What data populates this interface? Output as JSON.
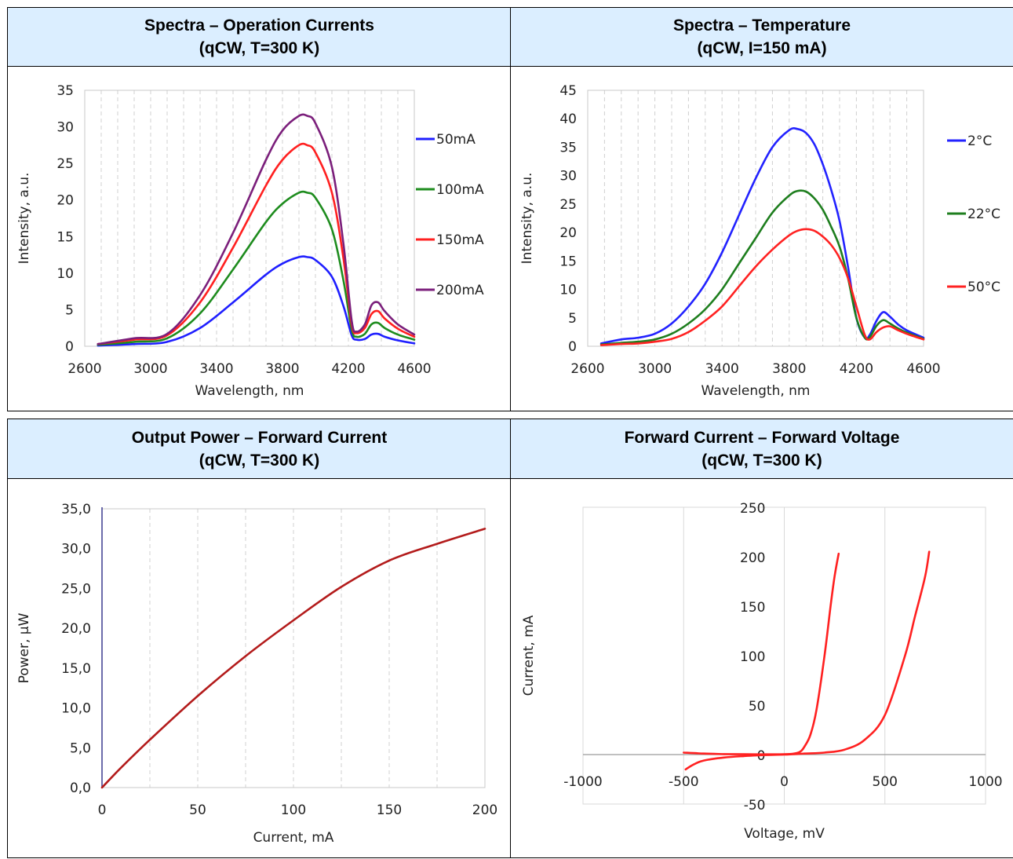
{
  "tables": [
    {
      "headers": [
        {
          "line1": "Spectra – Operation Currents",
          "line2": "(qCW, T=300 K)"
        },
        {
          "line1": "Spectra – Temperature",
          "line2": "(qCW, I=150 mA)"
        }
      ]
    },
    {
      "headers": [
        {
          "line1": "Output Power – Forward Current",
          "line2": "(qCW, T=300 K)"
        },
        {
          "line1": "Forward Current – Forward Voltage",
          "line2": "(qCW, T=300 K)"
        }
      ]
    }
  ],
  "chart_data": [
    {
      "type": "line",
      "xlabel": "Wavelength, nm",
      "ylabel": "Intensity, a.u.",
      "xlim": [
        2600,
        4600
      ],
      "ylim": [
        0,
        35
      ],
      "xticks": [
        "2600",
        "3000",
        "3400",
        "3800",
        "4200",
        "4600"
      ],
      "yticks": [
        "0",
        "5",
        "10",
        "15",
        "20",
        "25",
        "30",
        "35"
      ],
      "grid": "vertical-dashed",
      "legend": "right",
      "x": [
        2680,
        2900,
        3100,
        3300,
        3500,
        3700,
        3800,
        3900,
        3950,
        4000,
        4100,
        4170,
        4220,
        4250,
        4300,
        4340,
        4380,
        4420,
        4500,
        4600
      ],
      "series": [
        {
          "name": "50mA",
          "color": "#1f1fff",
          "values": [
            0.1,
            0.3,
            0.6,
            2.5,
            6.0,
            9.8,
            11.3,
            12.2,
            12.2,
            11.8,
            9.5,
            5.5,
            1.5,
            0.9,
            1.0,
            1.6,
            1.7,
            1.3,
            0.8,
            0.4
          ]
        },
        {
          "name": "100mA",
          "color": "#1e8c1e",
          "values": [
            0.2,
            0.6,
            1.1,
            4.5,
            10.5,
            17.0,
            19.5,
            21.0,
            21.0,
            20.3,
            16.0,
            9.0,
            2.3,
            1.3,
            1.7,
            3.0,
            3.2,
            2.5,
            1.6,
            0.9
          ]
        },
        {
          "name": "150mA",
          "color": "#ff2020",
          "values": [
            0.3,
            0.9,
            1.5,
            6.0,
            13.5,
            22.0,
            25.5,
            27.5,
            27.5,
            26.5,
            21.0,
            12.0,
            3.0,
            1.8,
            2.5,
            4.4,
            4.8,
            3.8,
            2.4,
            1.3
          ]
        },
        {
          "name": "200mA",
          "color": "#7b1f7b",
          "values": [
            0.3,
            1.1,
            1.7,
            7.0,
            15.5,
            25.5,
            29.5,
            31.5,
            31.5,
            30.5,
            24.5,
            14.0,
            3.5,
            2.0,
            3.0,
            5.6,
            6.0,
            4.8,
            3.0,
            1.6
          ]
        }
      ]
    },
    {
      "type": "line",
      "xlabel": "Wavelength, nm",
      "ylabel": "Intensity, a.u.",
      "xlim": [
        2600,
        4600
      ],
      "ylim": [
        0,
        45
      ],
      "xticks": [
        "2600",
        "3000",
        "3400",
        "3800",
        "4200",
        "4600"
      ],
      "yticks": [
        "0",
        "5",
        "10",
        "15",
        "20",
        "25",
        "30",
        "35",
        "40",
        "45"
      ],
      "grid": "vertical-dashed",
      "legend": "right",
      "x": [
        2680,
        2800,
        2900,
        3000,
        3100,
        3200,
        3300,
        3400,
        3500,
        3600,
        3700,
        3800,
        3850,
        3900,
        3950,
        4000,
        4050,
        4100,
        4150,
        4200,
        4250,
        4280,
        4320,
        4360,
        4400,
        4450,
        4500,
        4600
      ],
      "series": [
        {
          "name": "2°C",
          "color": "#2222ff",
          "values": [
            0.5,
            1.2,
            1.5,
            2.2,
            4.0,
            7.0,
            11.0,
            16.5,
            23.0,
            29.5,
            35.0,
            38.0,
            38.2,
            37.5,
            35.5,
            32.0,
            27.5,
            22.0,
            14.0,
            5.0,
            1.5,
            2.0,
            4.5,
            6.0,
            5.2,
            3.8,
            2.8,
            1.5
          ]
        },
        {
          "name": "22°C",
          "color": "#1e7e1e",
          "values": [
            0.3,
            0.6,
            0.8,
            1.2,
            2.2,
            4.0,
            6.5,
            10.0,
            14.5,
            19.0,
            23.5,
            26.5,
            27.3,
            27.2,
            26.0,
            24.0,
            21.0,
            17.5,
            12.0,
            5.0,
            1.5,
            1.6,
            3.6,
            4.6,
            4.0,
            3.1,
            2.4,
            1.3
          ]
        },
        {
          "name": "50°C",
          "color": "#ff2222",
          "values": [
            0.2,
            0.4,
            0.5,
            0.8,
            1.3,
            2.5,
            4.5,
            7.0,
            10.5,
            14.0,
            17.0,
            19.5,
            20.3,
            20.6,
            20.3,
            19.3,
            17.8,
            15.5,
            12.0,
            7.0,
            2.0,
            1.2,
            2.5,
            3.3,
            3.5,
            2.8,
            2.2,
            1.2
          ]
        }
      ]
    },
    {
      "type": "line",
      "xlabel": "Current, mA",
      "ylabel": "Power, µW",
      "xlim": [
        0,
        200
      ],
      "ylim": [
        0,
        35
      ],
      "xticks": [
        "0",
        "50",
        "100",
        "150",
        "200"
      ],
      "yticks": [
        "0,0",
        "5,0",
        "10,0",
        "15,0",
        "20,0",
        "25,0",
        "30,0",
        "35,0"
      ],
      "grid": "vertical-dashed",
      "legend": "none",
      "series": [
        {
          "color": "#b31b1b",
          "x": [
            0,
            10,
            25,
            50,
            75,
            100,
            125,
            150,
            175,
            200
          ],
          "values": [
            0.0,
            2.5,
            6.0,
            11.5,
            16.5,
            21.0,
            25.2,
            28.5,
            30.6,
            32.5
          ]
        }
      ]
    },
    {
      "type": "line",
      "xlabel": "Voltage, mV",
      "ylabel": "Current, mA",
      "xlim": [
        -1000,
        1000
      ],
      "ylim": [
        -50,
        250
      ],
      "xticks": [
        "-1000",
        "-500",
        "0",
        "500",
        "1000"
      ],
      "yticks": [
        "-50",
        "0",
        "50",
        "100",
        "150",
        "200",
        "250"
      ],
      "grid": "vertical-solid",
      "legend": "none",
      "series": [
        {
          "color": "#ff2020",
          "x": [
            -500,
            -400,
            -300,
            -200,
            -100,
            0,
            50,
            80,
            100,
            130,
            160,
            200,
            230,
            250,
            270
          ],
          "values": [
            2,
            1,
            0.5,
            0.3,
            0.2,
            0.3,
            1,
            3,
            8,
            20,
            45,
            100,
            150,
            180,
            203
          ]
        },
        {
          "color": "#ff2020",
          "x": [
            -490,
            -450,
            -400,
            -300,
            -200,
            -100,
            0,
            100,
            200,
            300,
            400,
            500,
            600,
            650,
            700,
            720
          ],
          "values": [
            -15,
            -10,
            -6,
            -3,
            -1.5,
            -0.5,
            0,
            1,
            2,
            5,
            15,
            40,
            100,
            140,
            180,
            205
          ]
        }
      ]
    }
  ]
}
